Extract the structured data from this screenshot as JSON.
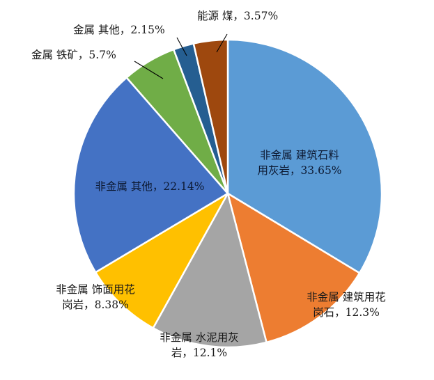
{
  "chart_data": {
    "type": "pie",
    "title": "",
    "start_angle_deg": 0,
    "direction": "clockwise",
    "slices": [
      {
        "label_lines": [
          "非金属  建筑石料",
          "用灰岩，33.65%"
        ],
        "value": 33.65,
        "color": "#5B9BD5"
      },
      {
        "label_lines": [
          "非金属  建筑用花",
          "岗石，12.3%"
        ],
        "value": 12.3,
        "color": "#ED7D31"
      },
      {
        "label_lines": [
          "非金属  水泥用灰",
          "岩，12.1%"
        ],
        "value": 12.1,
        "color": "#A5A5A5"
      },
      {
        "label_lines": [
          "非金属  饰面用花",
          "岗岩，8.38%"
        ],
        "value": 8.38,
        "color": "#FFC000"
      },
      {
        "label_lines": [
          "非金属  其他，22.14%"
        ],
        "value": 22.14,
        "color": "#4472C4"
      },
      {
        "label_lines": [
          "金属  铁矿，5.7%"
        ],
        "value": 5.7,
        "color": "#70AD47"
      },
      {
        "label_lines": [
          "金属  其他，2.15%"
        ],
        "value": 2.15,
        "color": "#255E91"
      },
      {
        "label_lines": [
          "能源  煤，3.57%"
        ],
        "value": 3.57,
        "color": "#9E480E"
      }
    ]
  }
}
